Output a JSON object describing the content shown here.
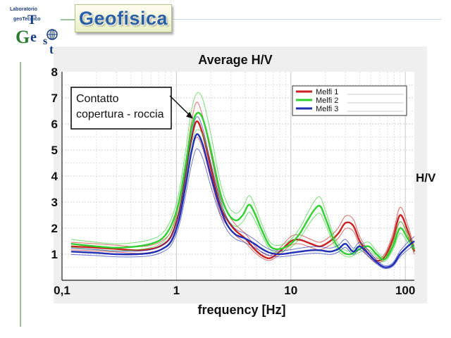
{
  "logo": {
    "line1": "Laboratorio",
    "line2": "geoTecnico",
    "letters": [
      "T",
      "G",
      "e",
      "s",
      "t"
    ]
  },
  "header": {
    "title": "Geofisica"
  },
  "colors": {
    "red": "#cc1f1f",
    "green": "#2fd12f",
    "blue": "#1f2fb8",
    "title": "#2b5fa5"
  },
  "chart_data": {
    "type": "line",
    "title": "Average H/V",
    "xlabel": "frequency [Hz]",
    "ylabel": "H/V",
    "xscale": "log",
    "xlim": [
      0.1,
      120
    ],
    "ylim": [
      0,
      8
    ],
    "xticks": [
      "0,1",
      "1",
      "10",
      "100"
    ],
    "yticks": [
      "1",
      "2",
      "3",
      "4",
      "5",
      "6",
      "7",
      "8"
    ],
    "grid": true,
    "legend_position": "top-right",
    "annotation": {
      "lines": [
        "Contatto",
        "copertura - roccia"
      ],
      "target": {
        "x": 1.4,
        "y": 6.2
      }
    },
    "series": [
      {
        "name": "Melfi 1",
        "color": "#cc1f1f",
        "x": [
          0.12,
          0.2,
          0.3,
          0.45,
          0.6,
          0.75,
          0.9,
          1.05,
          1.2,
          1.35,
          1.5,
          1.7,
          2.0,
          2.4,
          2.8,
          3.3,
          4.0,
          4.8,
          5.6,
          6.6,
          8.0,
          10,
          12,
          15,
          18,
          22,
          26,
          30,
          35,
          40,
          48,
          56,
          66,
          78,
          90,
          105,
          120
        ],
        "y": [
          1.3,
          1.25,
          1.2,
          1.15,
          1.2,
          1.35,
          1.7,
          2.6,
          4.0,
          5.4,
          6.1,
          5.6,
          4.3,
          2.9,
          2.3,
          1.9,
          1.6,
          1.2,
          0.95,
          0.85,
          1.1,
          1.5,
          1.55,
          1.4,
          1.3,
          1.5,
          1.8,
          2.2,
          2.1,
          1.5,
          1.0,
          0.75,
          0.9,
          1.6,
          2.5,
          1.9,
          1.1
        ]
      },
      {
        "name": "Melfi 2",
        "color": "#2fd12f",
        "x": [
          0.12,
          0.2,
          0.3,
          0.45,
          0.6,
          0.75,
          0.9,
          1.05,
          1.2,
          1.35,
          1.5,
          1.7,
          2.0,
          2.4,
          2.8,
          3.3,
          3.8,
          4.3,
          4.8,
          5.6,
          6.6,
          8.0,
          10,
          12,
          14,
          16,
          18,
          20,
          24,
          28,
          33,
          40,
          48,
          56,
          66,
          78,
          90,
          105,
          120
        ],
        "y": [
          1.4,
          1.3,
          1.25,
          1.3,
          1.4,
          1.6,
          2.1,
          3.0,
          4.4,
          5.8,
          6.4,
          6.2,
          5.0,
          3.4,
          2.6,
          2.3,
          2.5,
          2.9,
          2.6,
          1.9,
          1.3,
          1.2,
          1.4,
          1.8,
          2.3,
          2.7,
          2.85,
          2.4,
          1.5,
          1.1,
          1.0,
          1.2,
          1.3,
          1.0,
          0.8,
          1.3,
          2.0,
          1.6,
          1.2
        ]
      },
      {
        "name": "Melfi 3",
        "color": "#1f2fb8",
        "x": [
          0.12,
          0.2,
          0.3,
          0.45,
          0.6,
          0.75,
          0.9,
          1.05,
          1.2,
          1.35,
          1.5,
          1.7,
          2.0,
          2.4,
          2.8,
          3.3,
          4.0,
          4.8,
          5.6,
          6.6,
          8.0,
          10,
          12,
          15,
          18,
          22,
          26,
          30,
          35,
          40,
          48,
          56,
          66,
          78,
          90,
          105,
          120
        ],
        "y": [
          1.1,
          1.05,
          1.0,
          1.0,
          1.05,
          1.2,
          1.5,
          2.3,
          3.6,
          4.9,
          5.6,
          5.2,
          4.0,
          2.8,
          2.1,
          1.75,
          1.6,
          1.4,
          1.2,
          1.05,
          1.0,
          1.05,
          1.1,
          1.15,
          1.15,
          1.1,
          1.2,
          1.4,
          1.1,
          1.3,
          1.0,
          0.7,
          0.5,
          0.6,
          1.0,
          1.3,
          1.5
        ]
      }
    ]
  }
}
